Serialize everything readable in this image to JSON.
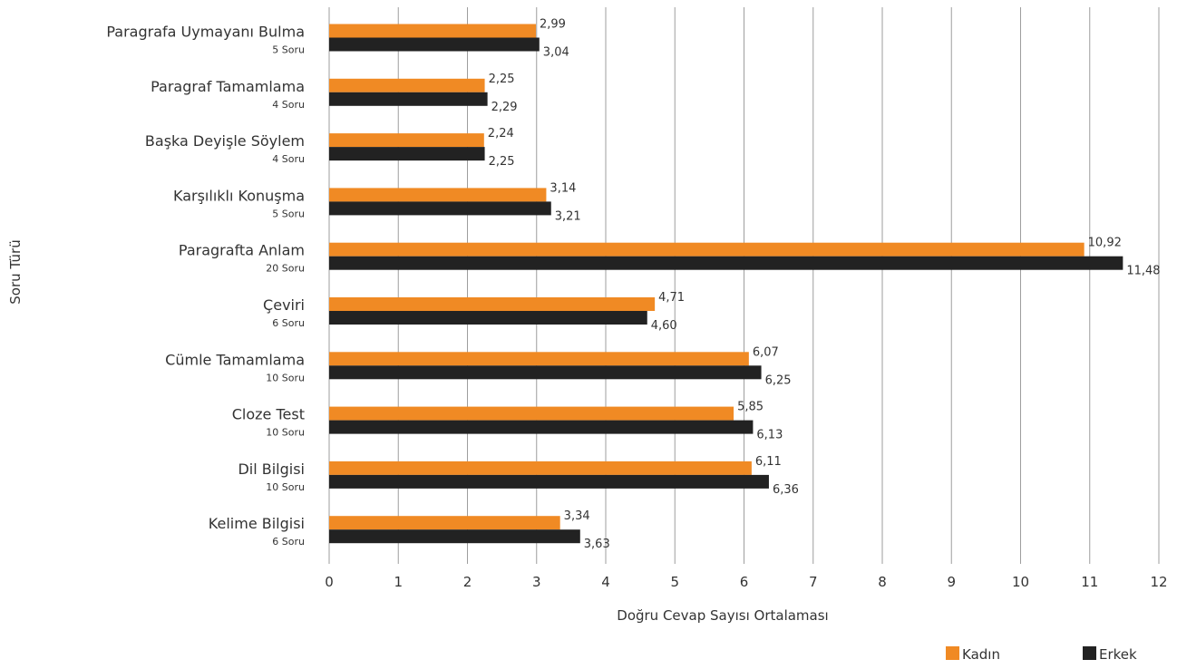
{
  "chart_data": {
    "type": "bar",
    "orientation": "horizontal",
    "title": "",
    "xlabel": "Doğru Cevap Sayısı Ortalaması",
    "ylabel": "Soru Türü",
    "xlim": [
      0,
      12
    ],
    "xticks": [
      "0",
      "1",
      "2",
      "3",
      "4",
      "5",
      "6",
      "7",
      "8",
      "9",
      "10",
      "11",
      "12"
    ],
    "grid": true,
    "legend_position": "bottom-right",
    "categories": [
      {
        "name": "Paragrafa Uymayanı Bulma",
        "sub": "5 Soru"
      },
      {
        "name": "Paragraf Tamamlama",
        "sub": "4 Soru"
      },
      {
        "name": "Başka Deyişle Söylem",
        "sub": "4 Soru"
      },
      {
        "name": "Karşılıklı Konuşma",
        "sub": "5 Soru"
      },
      {
        "name": "Paragrafta Anlam",
        "sub": "20 Soru"
      },
      {
        "name": "Çeviri",
        "sub": "6 Soru"
      },
      {
        "name": "Cümle Tamamlama",
        "sub": "10 Soru"
      },
      {
        "name": "Cloze Test",
        "sub": "10 Soru"
      },
      {
        "name": "Dil Bilgisi",
        "sub": "10 Soru"
      },
      {
        "name": "Kelime Bilgisi",
        "sub": "6 Soru"
      }
    ],
    "series": [
      {
        "name": "Kadın",
        "color": "#f08a24",
        "values": [
          2.99,
          2.25,
          2.24,
          3.14,
          10.92,
          4.71,
          6.07,
          5.85,
          6.11,
          3.34
        ],
        "labels": [
          "2,99",
          "2,25",
          "2,24",
          "3,14",
          "10,92",
          "4,71",
          "6,07",
          "5,85",
          "6,11",
          "3,34"
        ]
      },
      {
        "name": "Erkek",
        "color": "#222222",
        "values": [
          3.04,
          2.29,
          2.25,
          3.21,
          11.48,
          4.6,
          6.25,
          6.13,
          6.36,
          3.63
        ],
        "labels": [
          "3,04",
          "2,29",
          "2,25",
          "3,21",
          "11,48",
          "4,60",
          "6,25",
          "6,13",
          "6,36",
          "3,63"
        ]
      }
    ]
  }
}
